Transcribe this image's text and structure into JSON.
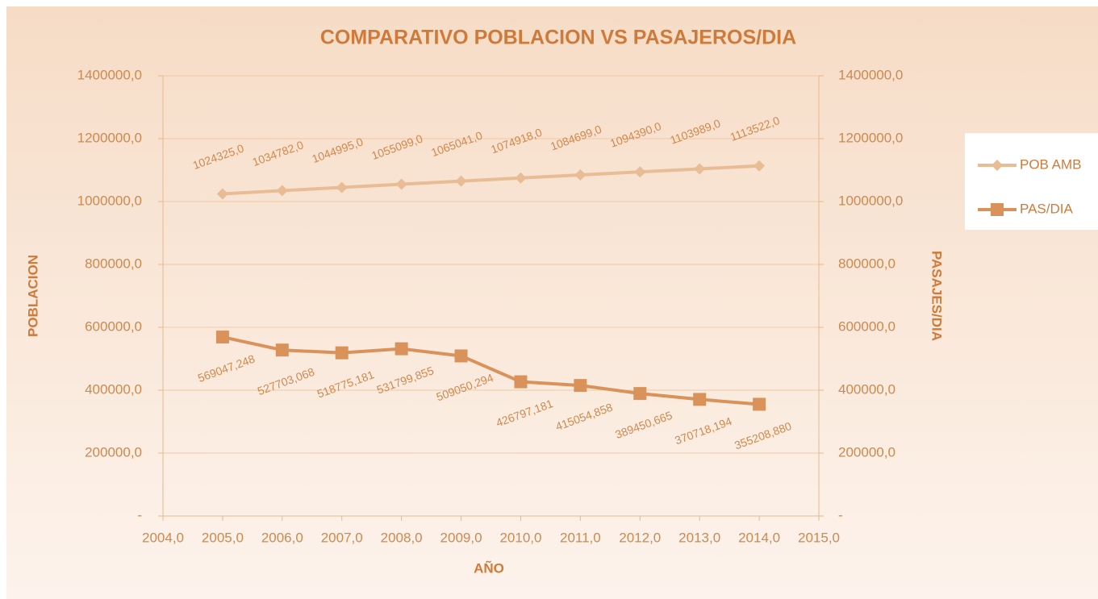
{
  "chart_data": {
    "type": "line",
    "title": "COMPARATIVO POBLACION VS PASAJEROS/DIA",
    "xlabel": "AÑO",
    "ylabel": "POBLACION",
    "y2label": "PASAJES/DIA",
    "x": [
      2005,
      2006,
      2007,
      2008,
      2009,
      2010,
      2011,
      2012,
      2013,
      2014
    ],
    "xlim": [
      2004,
      2015
    ],
    "xticks": [
      {
        "value": 2004,
        "label": "2004,0"
      },
      {
        "value": 2005,
        "label": "2005,0"
      },
      {
        "value": 2006,
        "label": "2006,0"
      },
      {
        "value": 2007,
        "label": "2007,0"
      },
      {
        "value": 2008,
        "label": "2008,0"
      },
      {
        "value": 2009,
        "label": "2009,0"
      },
      {
        "value": 2010,
        "label": "2010,0"
      },
      {
        "value": 2011,
        "label": "2011,0"
      },
      {
        "value": 2012,
        "label": "2012,0"
      },
      {
        "value": 2013,
        "label": "2013,0"
      },
      {
        "value": 2014,
        "label": "2014,0"
      },
      {
        "value": 2015,
        "label": "2015,0"
      }
    ],
    "ylim": [
      0,
      1400000
    ],
    "yticks": [
      {
        "value": 0,
        "label": "-"
      },
      {
        "value": 200000,
        "label": "200000,0"
      },
      {
        "value": 400000,
        "label": "400000,0"
      },
      {
        "value": 600000,
        "label": "600000,0"
      },
      {
        "value": 800000,
        "label": "800000,0"
      },
      {
        "value": 1000000,
        "label": "1000000,0"
      },
      {
        "value": 1200000,
        "label": "1200000,0"
      },
      {
        "value": 1400000,
        "label": "1400000,0"
      }
    ],
    "y2lim": [
      0,
      1400000
    ],
    "y2ticks": [
      {
        "value": 0,
        "label": "-"
      },
      {
        "value": 200000,
        "label": "200000,0"
      },
      {
        "value": 400000,
        "label": "400000,0"
      },
      {
        "value": 600000,
        "label": "600000,0"
      },
      {
        "value": 800000,
        "label": "800000,0"
      },
      {
        "value": 1000000,
        "label": "1000000,0"
      },
      {
        "value": 1200000,
        "label": "1200000,0"
      },
      {
        "value": 1400000,
        "label": "1400000,0"
      }
    ],
    "grid": true,
    "legend": "right",
    "series": [
      {
        "name": "POB AMB",
        "color": "#e8bc94",
        "marker": "diamond",
        "values": [
          1024325,
          1034782,
          1044995,
          1055099,
          1065041,
          1074918,
          1084699,
          1094390,
          1103989,
          1113522
        ],
        "value_labels": [
          "1024325,0",
          "1034782,0",
          "1044995,0",
          "1055099,0",
          "1065041,0",
          "1074918,0",
          "1084699,0",
          "1094390,0",
          "1103989,0",
          "1113522,0"
        ]
      },
      {
        "name": "PAS/DIA",
        "color": "#d9925a",
        "marker": "square",
        "axis": "y2",
        "values": [
          569047.248,
          527703.068,
          518775.181,
          531799.855,
          509050.294,
          426797.181,
          415054.858,
          389450.665,
          370718.194,
          355208.88
        ],
        "value_labels": [
          "569047,248",
          "527703,068",
          "518775,181",
          "531799,855",
          "509050,294",
          "426797,181",
          "415054,858",
          "389450,665",
          "370718,194",
          "355208,880"
        ]
      }
    ]
  }
}
